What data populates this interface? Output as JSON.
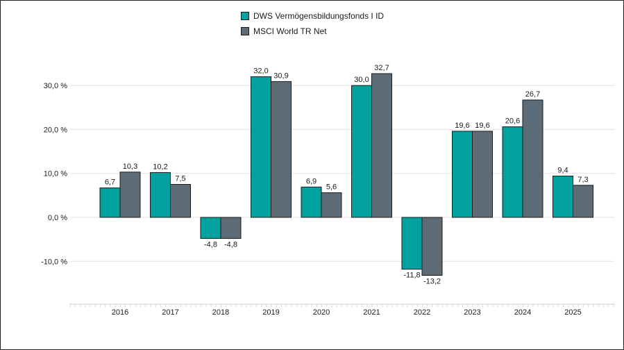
{
  "chart_data": {
    "type": "bar",
    "categories": [
      "2016",
      "2017",
      "2018",
      "2019",
      "2020",
      "2021",
      "2022",
      "2023",
      "2024",
      "2025"
    ],
    "series": [
      {
        "name": "DWS Vermögensbildungsfonds I ID",
        "color": "#00a19e",
        "values": [
          6.7,
          10.2,
          -4.8,
          32.0,
          6.9,
          30.0,
          -11.8,
          19.6,
          20.6,
          9.4
        ],
        "labels": [
          "6,7",
          "10,2",
          "-4,8",
          "32,0",
          "6,9",
          "30,0",
          "-11,8",
          "19,6",
          "20,6",
          "9,4"
        ]
      },
      {
        "name": "MSCI World TR Net",
        "color": "#5c6b76",
        "values": [
          10.3,
          7.5,
          -4.8,
          30.9,
          5.6,
          32.7,
          -13.2,
          19.6,
          26.7,
          7.3
        ],
        "labels": [
          "10,3",
          "7,5",
          "-4,8",
          "30,9",
          "5,6",
          "32,7",
          "-13,2",
          "19,6",
          "26,7",
          "7,3"
        ]
      }
    ],
    "yticks": [
      -10,
      0,
      10,
      20,
      30
    ],
    "ytick_labels": [
      "-10,0 %",
      "0,0 %",
      "10,0 %",
      "20,0 %",
      "30,0 %"
    ],
    "ylim": [
      -20,
      40
    ],
    "grid": true,
    "legend_position": "top-center"
  }
}
